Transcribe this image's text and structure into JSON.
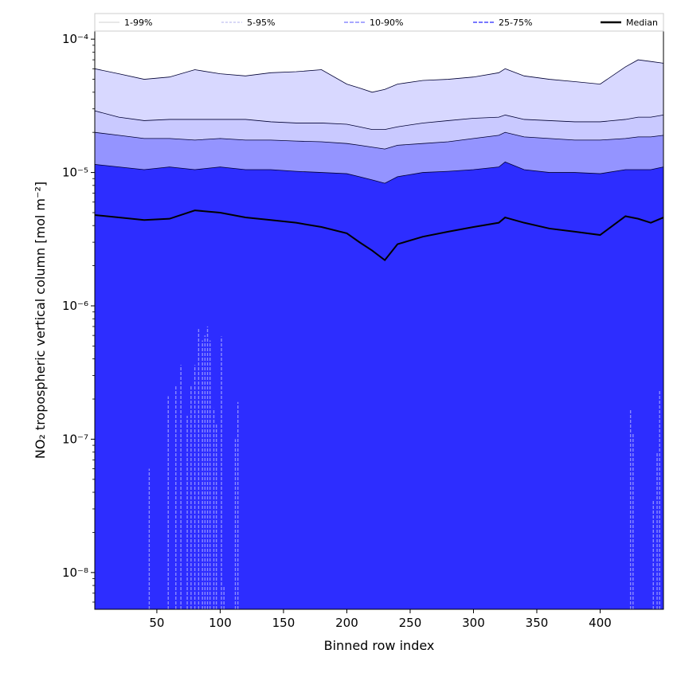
{
  "chart_data": {
    "type": "area",
    "title": "",
    "xlabel": "Binned row index",
    "ylabel": "NO₂ tropospheric vertical column [mol m⁻²]",
    "x_range": [
      1,
      450
    ],
    "y_range": [
      5.3e-09,
      0.000115
    ],
    "y_scale": "log",
    "grid": false,
    "legend_position": "top",
    "x_ticks": [
      {
        "value": 50,
        "label": "50"
      },
      {
        "value": 100,
        "label": "100"
      },
      {
        "value": 150,
        "label": "150"
      },
      {
        "value": 200,
        "label": "200"
      },
      {
        "value": 250,
        "label": "250"
      },
      {
        "value": 300,
        "label": "300"
      },
      {
        "value": 350,
        "label": "350"
      },
      {
        "value": 400,
        "label": "400"
      }
    ],
    "y_ticks": [
      {
        "value": 1e-08,
        "label": "10⁻⁸"
      },
      {
        "value": 1e-07,
        "label": "10⁻⁷"
      },
      {
        "value": 1e-06,
        "label": "10⁻⁶"
      },
      {
        "value": 1e-05,
        "label": "10⁻⁵"
      },
      {
        "value": 0.0001,
        "label": "10⁻⁴"
      }
    ],
    "x": [
      1,
      20,
      40,
      60,
      80,
      100,
      120,
      140,
      160,
      180,
      200,
      210,
      220,
      230,
      240,
      260,
      280,
      300,
      320,
      325,
      340,
      360,
      380,
      400,
      420,
      430,
      440,
      450
    ],
    "series": [
      {
        "name": "Median",
        "color": "#000000",
        "values": [
          4.8e-06,
          4.6e-06,
          4.4e-06,
          4.5e-06,
          5.2e-06,
          5e-06,
          4.6e-06,
          4.4e-06,
          4.2e-06,
          3.9e-06,
          3.5e-06,
          3e-06,
          2.6e-06,
          2.2e-06,
          2.9e-06,
          3.3e-06,
          3.6e-06,
          3.9e-06,
          4.2e-06,
          4.6e-06,
          4.2e-06,
          3.8e-06,
          3.6e-06,
          3.4e-06,
          4.7e-06,
          4.5e-06,
          4.2e-06,
          4.6e-06
        ]
      },
      {
        "name": "25-75%",
        "fill": "#6060ff",
        "lower": [
          5.3e-09,
          5.3e-09,
          5.3e-09,
          5.3e-09,
          5.3e-09,
          5.3e-09,
          5.3e-09,
          5.3e-09,
          5.3e-09,
          5.3e-09,
          5.3e-09,
          5.3e-09,
          5.3e-09,
          5.3e-09,
          5.3e-09,
          5.3e-09,
          5.3e-09,
          5.3e-09,
          5.3e-09,
          5.3e-09,
          5.3e-09,
          5.3e-09,
          5.3e-09,
          5.3e-09,
          5.3e-09,
          5.3e-09,
          5.3e-09,
          5.3e-09
        ],
        "upper": [
          1.15e-05,
          1.1e-05,
          1.05e-05,
          1.1e-05,
          1.05e-05,
          1.1e-05,
          1.05e-05,
          1.05e-05,
          1.02e-05,
          1e-05,
          9.8e-06,
          9.3e-06,
          8.8e-06,
          8.3e-06,
          9.3e-06,
          1e-05,
          1.02e-05,
          1.05e-05,
          1.1e-05,
          1.2e-05,
          1.05e-05,
          1e-05,
          1e-05,
          9.8e-06,
          1.05e-05,
          1.05e-05,
          1.05e-05,
          1.1e-05
        ]
      },
      {
        "name": "10-90%",
        "fill": "#9494ff",
        "upper": [
          2e-05,
          1.9e-05,
          1.8e-05,
          1.8e-05,
          1.75e-05,
          1.8e-05,
          1.75e-05,
          1.75e-05,
          1.72e-05,
          1.7e-05,
          1.65e-05,
          1.6e-05,
          1.55e-05,
          1.5e-05,
          1.6e-05,
          1.65e-05,
          1.7e-05,
          1.8e-05,
          1.9e-05,
          2e-05,
          1.85e-05,
          1.8e-05,
          1.75e-05,
          1.75e-05,
          1.8e-05,
          1.85e-05,
          1.85e-05,
          1.9e-05
        ]
      },
      {
        "name": "5-95%",
        "fill": "#c9c9ff",
        "upper": [
          2.9e-05,
          2.6e-05,
          2.45e-05,
          2.5e-05,
          2.5e-05,
          2.5e-05,
          2.5e-05,
          2.4e-05,
          2.35e-05,
          2.35e-05,
          2.3e-05,
          2.2e-05,
          2.1e-05,
          2.1e-05,
          2.2e-05,
          2.35e-05,
          2.45e-05,
          2.55e-05,
          2.6e-05,
          2.7e-05,
          2.5e-05,
          2.45e-05,
          2.4e-05,
          2.4e-05,
          2.5e-05,
          2.6e-05,
          2.6e-05,
          2.7e-05
        ]
      },
      {
        "name": "1-99%",
        "fill": "#d8d8ff",
        "upper": [
          6e-05,
          5.5e-05,
          5e-05,
          5.2e-05,
          5.9e-05,
          5.5e-05,
          5.3e-05,
          5.6e-05,
          5.7e-05,
          5.9e-05,
          4.6e-05,
          4.3e-05,
          4e-05,
          4.2e-05,
          4.6e-05,
          4.9e-05,
          5e-05,
          5.2e-05,
          5.6e-05,
          6e-05,
          5.3e-05,
          5e-05,
          4.8e-05,
          4.6e-05,
          6.2e-05,
          7e-05,
          6.8e-05,
          6.6e-05
        ]
      }
    ],
    "legend": [
      {
        "name": "1-99%",
        "color": "#d0d0d0",
        "style": "solid-thin"
      },
      {
        "name": "5-95%",
        "color": "#b0b0ee",
        "style": "dash-thin"
      },
      {
        "name": "10-90%",
        "color": "#8c8cff",
        "style": "dash"
      },
      {
        "name": "25-75%",
        "color": "#4a4aff",
        "style": "dash"
      },
      {
        "name": "Median",
        "color": "#000000",
        "style": "solid-thick"
      }
    ],
    "colors": {
      "inner_fill": "#2d2dff",
      "spike_color": "#8a8aff"
    },
    "spikes": [
      {
        "x": 44,
        "y": 6e-08
      },
      {
        "x": 59,
        "y": 2.1e-07
      },
      {
        "x": 65,
        "y": 2.5e-07
      },
      {
        "x": 69,
        "y": 3.6e-07
      },
      {
        "x": 74,
        "y": 1.5e-07
      },
      {
        "x": 77,
        "y": 2.5e-07
      },
      {
        "x": 80,
        "y": 3.6e-07
      },
      {
        "x": 83,
        "y": 6.7e-07
      },
      {
        "x": 86,
        "y": 5.5e-07
      },
      {
        "x": 88,
        "y": 6e-07
      },
      {
        "x": 90,
        "y": 7e-07
      },
      {
        "x": 92,
        "y": 5.5e-07
      },
      {
        "x": 95,
        "y": 1.7e-07
      },
      {
        "x": 97,
        "y": 1.3e-07
      },
      {
        "x": 101,
        "y": 5.9e-07
      },
      {
        "x": 103,
        "y": 8e-09
      },
      {
        "x": 112,
        "y": 1e-07
      },
      {
        "x": 114,
        "y": 1.9e-07
      },
      {
        "x": 424,
        "y": 1.65e-07
      },
      {
        "x": 426,
        "y": 1.1e-07
      },
      {
        "x": 442,
        "y": 3.5e-08
      },
      {
        "x": 445,
        "y": 8e-08
      },
      {
        "x": 447,
        "y": 2.3e-07
      }
    ]
  }
}
